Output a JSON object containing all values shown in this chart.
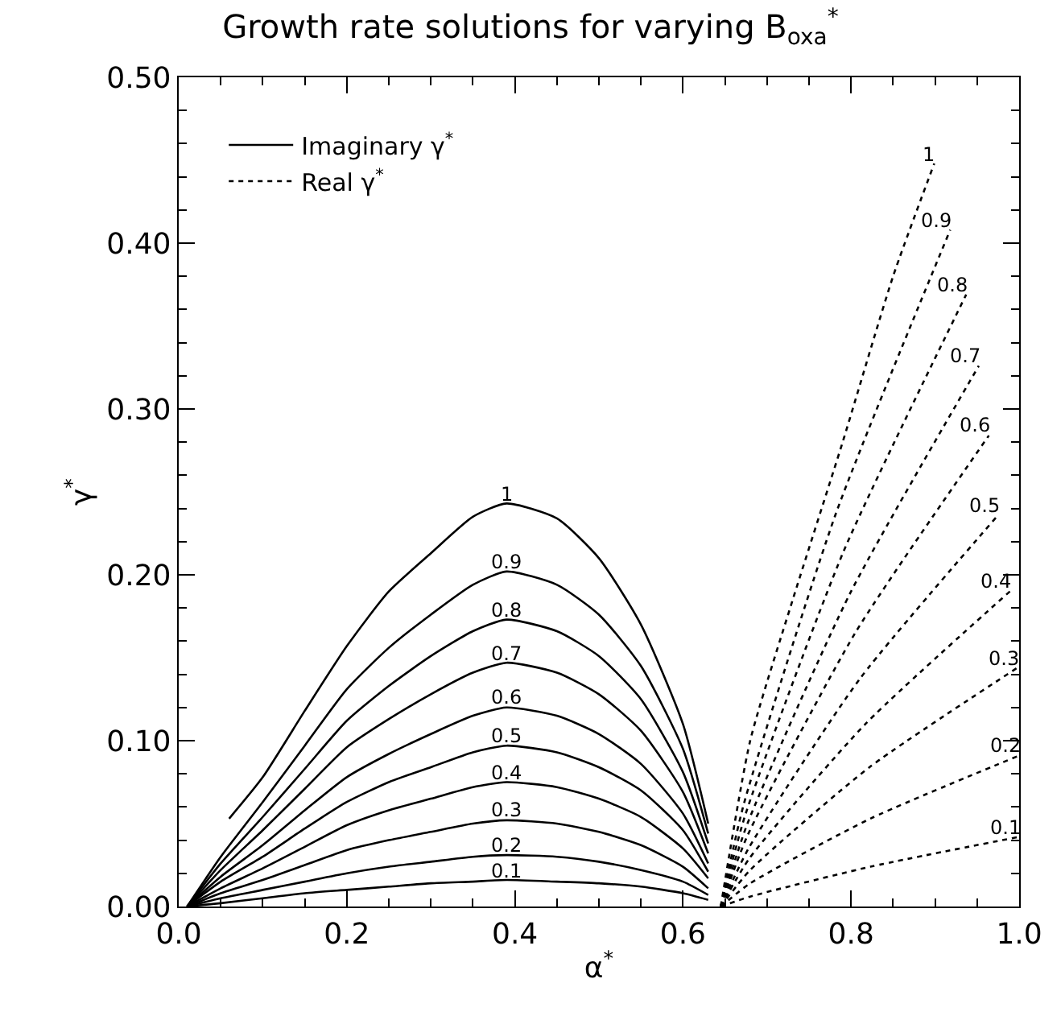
{
  "chart_data": {
    "type": "line",
    "title": "Growth rate solutions for varying B$_{oxa}$$^{*}$",
    "xlabel": "α$^{*}$",
    "ylabel": "γ$^{*}$",
    "xlim": [
      0,
      1
    ],
    "ylim": [
      0,
      0.5
    ],
    "xticks": [
      {
        "value": 0,
        "label": "0.0"
      },
      {
        "value": 0.2,
        "label": "0.2"
      },
      {
        "value": 0.4,
        "label": "0.4"
      },
      {
        "value": 0.6,
        "label": "0.6"
      },
      {
        "value": 0.8,
        "label": "0.8"
      },
      {
        "value": 1,
        "label": "1.0"
      }
    ],
    "yticks": [
      {
        "value": 0,
        "label": "0.00"
      },
      {
        "value": 0.1,
        "label": "0.10"
      },
      {
        "value": 0.2,
        "label": "0.20"
      },
      {
        "value": 0.3,
        "label": "0.30"
      },
      {
        "value": 0.4,
        "label": "0.40"
      },
      {
        "value": 0.5,
        "label": "0.50"
      }
    ],
    "grid": false,
    "legend": "top left",
    "marker": "none",
    "annotations": [
      {
        "text": "1",
        "x": 0.39,
        "y": 0.243
      },
      {
        "text": "0.9",
        "x": 0.39,
        "y": 0.202
      },
      {
        "text": "0.8",
        "x": 0.39,
        "y": 0.173
      },
      {
        "text": "0.7",
        "x": 0.39,
        "y": 0.147
      },
      {
        "text": "0.6",
        "x": 0.39,
        "y": 0.12
      },
      {
        "text": "0.5",
        "x": 0.39,
        "y": 0.097
      },
      {
        "text": "0.4",
        "x": 0.39,
        "y": 0.075
      },
      {
        "text": "0.3",
        "x": 0.39,
        "y": 0.052
      },
      {
        "text": "0.2",
        "x": 0.39,
        "y": 0.031
      },
      {
        "text": "0.1",
        "x": 0.39,
        "y": 0.016
      },
      {
        "text": "1",
        "x": 0.899,
        "y": 0.448
      },
      {
        "text": "0.9",
        "x": 0.918,
        "y": 0.408
      },
      {
        "text": "0.8",
        "x": 0.937,
        "y": 0.369
      },
      {
        "text": "0.7",
        "x": 0.952,
        "y": 0.326
      },
      {
        "text": "0.6",
        "x": 0.964,
        "y": 0.284
      },
      {
        "text": "0.5",
        "x": 0.975,
        "y": 0.236
      },
      {
        "text": "0.4",
        "x": 0.989,
        "y": 0.19
      },
      {
        "text": "0.3",
        "x": 0.998,
        "y": 0.144
      },
      {
        "text": "0.2",
        "x": 1.0,
        "y": 0.091
      },
      {
        "text": "0.1",
        "x": 1.0,
        "y": 0.042
      }
    ],
    "series": [
      {
        "name": "Imaginary γ$^{*}$",
        "color": "#000000",
        "line_style": "solid",
        "x": [
          0.06,
          0.1,
          0.15,
          0.2,
          0.25,
          0.3,
          0.35,
          0.39,
          0.45,
          0.5,
          0.55,
          0.6,
          0.63
        ],
        "values": [
          0.053,
          0.078,
          0.118,
          0.157,
          0.19,
          0.213,
          0.235,
          0.243,
          0.234,
          0.21,
          0.17,
          0.11,
          0.05
        ]
      },
      {
        "color": "#000000",
        "line_style": "solid",
        "x": [
          0.01,
          0.05,
          0.1,
          0.15,
          0.2,
          0.25,
          0.3,
          0.35,
          0.39,
          0.45,
          0.5,
          0.55,
          0.6,
          0.63
        ],
        "values": [
          0,
          0.03,
          0.063,
          0.097,
          0.131,
          0.156,
          0.176,
          0.194,
          0.202,
          0.194,
          0.176,
          0.145,
          0.095,
          0.044
        ]
      },
      {
        "color": "#000000",
        "line_style": "solid",
        "x": [
          0.01,
          0.05,
          0.1,
          0.15,
          0.2,
          0.25,
          0.3,
          0.35,
          0.39,
          0.45,
          0.5,
          0.55,
          0.6,
          0.63
        ],
        "values": [
          0,
          0.026,
          0.054,
          0.083,
          0.112,
          0.133,
          0.151,
          0.166,
          0.173,
          0.166,
          0.151,
          0.125,
          0.081,
          0.038
        ]
      },
      {
        "color": "#000000",
        "line_style": "solid",
        "x": [
          0.01,
          0.05,
          0.1,
          0.15,
          0.2,
          0.25,
          0.3,
          0.35,
          0.39,
          0.45,
          0.5,
          0.55,
          0.6,
          0.63
        ],
        "values": [
          0,
          0.022,
          0.046,
          0.071,
          0.096,
          0.113,
          0.128,
          0.141,
          0.147,
          0.141,
          0.128,
          0.106,
          0.069,
          0.032
        ]
      },
      {
        "color": "#000000",
        "line_style": "solid",
        "x": [
          0.01,
          0.05,
          0.1,
          0.15,
          0.2,
          0.25,
          0.3,
          0.35,
          0.39,
          0.45,
          0.5,
          0.55,
          0.6,
          0.63
        ],
        "values": [
          0,
          0.018,
          0.037,
          0.058,
          0.078,
          0.092,
          0.104,
          0.115,
          0.12,
          0.115,
          0.104,
          0.086,
          0.056,
          0.026
        ]
      },
      {
        "color": "#000000",
        "line_style": "solid",
        "x": [
          0.01,
          0.05,
          0.1,
          0.15,
          0.2,
          0.25,
          0.3,
          0.35,
          0.39,
          0.45,
          0.5,
          0.55,
          0.6,
          0.63
        ],
        "values": [
          0,
          0.015,
          0.03,
          0.047,
          0.063,
          0.075,
          0.084,
          0.093,
          0.097,
          0.093,
          0.084,
          0.07,
          0.046,
          0.021
        ]
      },
      {
        "color": "#000000",
        "line_style": "solid",
        "x": [
          0.01,
          0.05,
          0.1,
          0.15,
          0.2,
          0.25,
          0.3,
          0.35,
          0.39,
          0.45,
          0.5,
          0.55,
          0.6,
          0.63
        ],
        "values": [
          0,
          0.011,
          0.023,
          0.036,
          0.049,
          0.058,
          0.065,
          0.072,
          0.075,
          0.072,
          0.065,
          0.054,
          0.035,
          0.017
        ]
      },
      {
        "color": "#000000",
        "line_style": "solid",
        "x": [
          0.01,
          0.05,
          0.1,
          0.15,
          0.2,
          0.25,
          0.3,
          0.35,
          0.39,
          0.45,
          0.5,
          0.55,
          0.6,
          0.63
        ],
        "values": [
          0,
          0.008,
          0.016,
          0.025,
          0.034,
          0.04,
          0.045,
          0.05,
          0.052,
          0.05,
          0.045,
          0.037,
          0.024,
          0.011
        ]
      },
      {
        "color": "#000000",
        "line_style": "solid",
        "x": [
          0.01,
          0.05,
          0.1,
          0.15,
          0.2,
          0.25,
          0.3,
          0.35,
          0.39,
          0.45,
          0.5,
          0.55,
          0.6,
          0.63
        ],
        "values": [
          0,
          0.005,
          0.01,
          0.015,
          0.02,
          0.024,
          0.027,
          0.03,
          0.031,
          0.03,
          0.027,
          0.022,
          0.015,
          0.007
        ]
      },
      {
        "color": "#000000",
        "line_style": "solid",
        "x": [
          0.01,
          0.05,
          0.1,
          0.15,
          0.2,
          0.25,
          0.3,
          0.35,
          0.39,
          0.45,
          0.5,
          0.55,
          0.6,
          0.63
        ],
        "values": [
          0,
          0.002,
          0.005,
          0.008,
          0.01,
          0.012,
          0.014,
          0.015,
          0.016,
          0.015,
          0.014,
          0.012,
          0.008,
          0.004
        ]
      },
      {
        "name": "Real γ$^{*}$",
        "color": "#000000",
        "line_style": "dotted",
        "x": [
          0.645,
          0.68,
          0.73,
          0.79,
          0.85,
          0.899
        ],
        "values": [
          0,
          0.1,
          0.184,
          0.28,
          0.38,
          0.448
        ]
      },
      {
        "color": "#000000",
        "line_style": "dotted",
        "x": [
          0.645,
          0.672,
          0.782,
          0.918
        ],
        "values": [
          0,
          0.061,
          0.237,
          0.408
        ]
      },
      {
        "color": "#000000",
        "line_style": "dotted",
        "x": [
          0.645,
          0.674,
          0.791,
          0.937
        ],
        "values": [
          0,
          0.055,
          0.214,
          0.369
        ]
      },
      {
        "color": "#000000",
        "line_style": "dotted",
        "x": [
          0.645,
          0.676,
          0.799,
          0.952
        ],
        "values": [
          0,
          0.049,
          0.189,
          0.326
        ]
      },
      {
        "color": "#000000",
        "line_style": "dotted",
        "x": [
          0.645,
          0.677,
          0.805,
          0.964
        ],
        "values": [
          0,
          0.043,
          0.165,
          0.284
        ]
      },
      {
        "color": "#000000",
        "line_style": "dotted",
        "x": [
          0.645,
          0.678,
          0.81,
          0.975
        ],
        "values": [
          0,
          0.035,
          0.137,
          0.236
        ]
      },
      {
        "color": "#000000",
        "line_style": "dotted",
        "x": [
          0.645,
          0.679,
          0.817,
          0.989
        ],
        "values": [
          0,
          0.029,
          0.11,
          0.19
        ]
      },
      {
        "color": "#000000",
        "line_style": "dotted",
        "x": [
          0.645,
          0.68,
          0.822,
          0.998
        ],
        "values": [
          0,
          0.022,
          0.084,
          0.144
        ]
      },
      {
        "color": "#000000",
        "line_style": "dotted",
        "x": [
          0.645,
          0.68,
          0.823,
          1.0
        ],
        "values": [
          0,
          0.014,
          0.053,
          0.091
        ]
      },
      {
        "color": "#000000",
        "line_style": "dotted",
        "x": [
          0.645,
          0.68,
          0.823,
          1.0
        ],
        "values": [
          0,
          0.006,
          0.024,
          0.042
        ]
      }
    ]
  }
}
